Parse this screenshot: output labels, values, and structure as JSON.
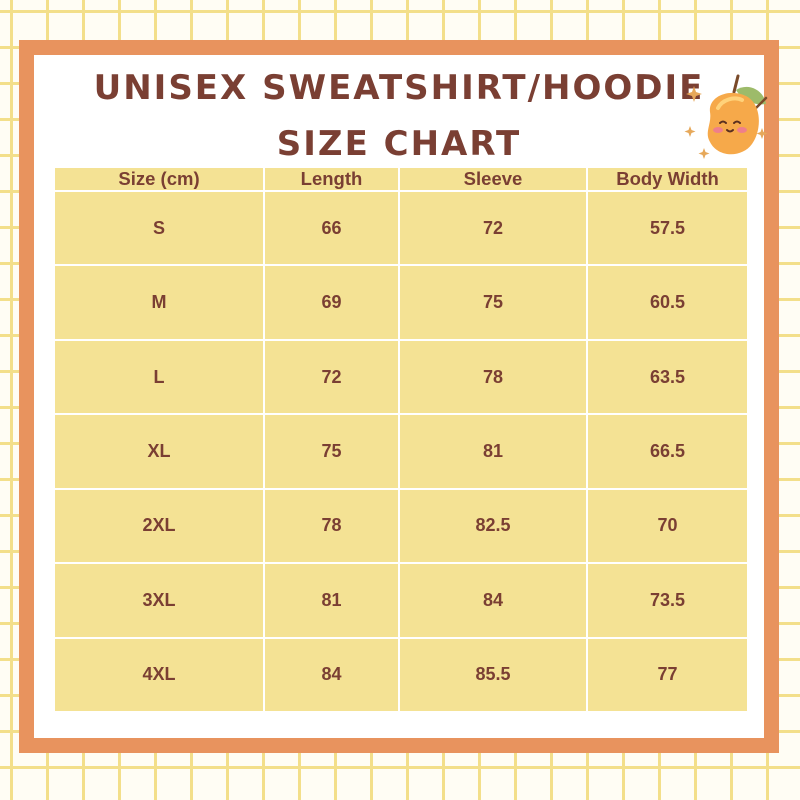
{
  "title": {
    "line1": "UNISEX SWEATSHIRT/HOODIE",
    "line2": "SIZE CHART"
  },
  "decoration": {
    "icon": "mango-mascot-icon",
    "colors": {
      "frame": "#e8935e",
      "table": "#f4e294",
      "text": "#7a3f33",
      "grid": "#f3df8a"
    }
  },
  "table": {
    "headers": [
      "Size (cm)",
      "Length",
      "Sleeve",
      "Body Width"
    ],
    "rows": [
      [
        "S",
        "66",
        "72",
        "57.5"
      ],
      [
        "M",
        "69",
        "75",
        "60.5"
      ],
      [
        "L",
        "72",
        "78",
        "63.5"
      ],
      [
        "XL",
        "75",
        "81",
        "66.5"
      ],
      [
        "2XL",
        "78",
        "82.5",
        "70"
      ],
      [
        "3XL",
        "81",
        "84",
        "73.5"
      ],
      [
        "4XL",
        "84",
        "85.5",
        "77"
      ]
    ]
  }
}
